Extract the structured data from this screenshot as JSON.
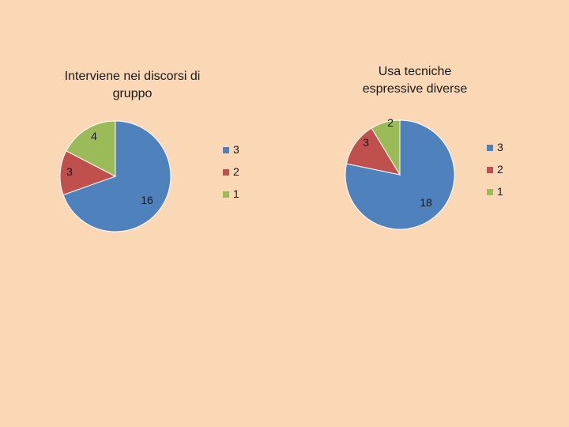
{
  "chart_data": [
    {
      "type": "pie",
      "title": "Interviene nei discorsi di\ngruppo",
      "categories": [
        "3",
        "2",
        "1"
      ],
      "values": [
        16,
        3,
        4
      ],
      "data_labels": [
        "16",
        "3",
        "4"
      ],
      "legend": {
        "entries": [
          "3",
          "2",
          "1"
        ],
        "placement": "right"
      },
      "colors": [
        "#4f81bd",
        "#c0504d",
        "#9bbb59"
      ]
    },
    {
      "type": "pie",
      "title": "Usa tecniche\nespressive diverse",
      "categories": [
        "3",
        "2",
        "1"
      ],
      "values": [
        18,
        3,
        2
      ],
      "data_labels": [
        "18",
        "3",
        "2"
      ],
      "legend": {
        "entries": [
          "3",
          "2",
          "1"
        ],
        "placement": "right"
      },
      "colors": [
        "#4f81bd",
        "#c0504d",
        "#9bbb59"
      ]
    }
  ]
}
